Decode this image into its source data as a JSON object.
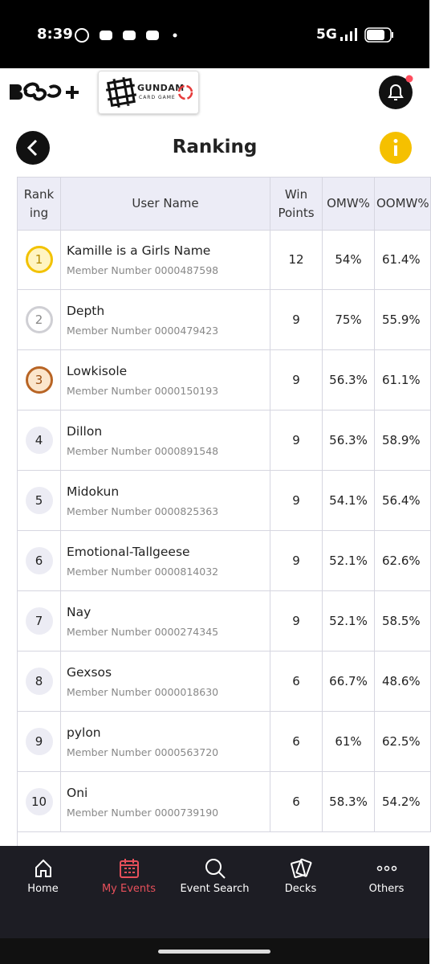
{
  "status_bar": {
    "time": "8:39",
    "network": "5G"
  },
  "header": {
    "logo_title": "GUNDAM",
    "logo_subtitle": "CARD GAME",
    "title": "Ranking"
  },
  "table": {
    "columns": [
      "Ranking",
      "User Name",
      "Win Points",
      "OMW%",
      "OOMW%"
    ],
    "rows": [
      {
        "rank": "1",
        "name": "Kamille is a Girls Name",
        "member": "Member Number 0000487598",
        "win_points": "12",
        "omw": "54%",
        "oomw": "61.4%"
      },
      {
        "rank": "2",
        "name": "Depth",
        "member": "Member Number 0000479423",
        "win_points": "9",
        "omw": "75%",
        "oomw": "55.9%"
      },
      {
        "rank": "3",
        "name": "Lowkisole",
        "member": "Member Number 0000150193",
        "win_points": "9",
        "omw": "56.3%",
        "oomw": "61.1%"
      },
      {
        "rank": "4",
        "name": "Dillon",
        "member": "Member Number 0000891548",
        "win_points": "9",
        "omw": "56.3%",
        "oomw": "58.9%"
      },
      {
        "rank": "5",
        "name": "Midokun",
        "member": "Member Number 0000825363",
        "win_points": "9",
        "omw": "54.1%",
        "oomw": "56.4%"
      },
      {
        "rank": "6",
        "name": "Emotional-Tallgeese",
        "member": "Member Number 0000814032",
        "win_points": "9",
        "omw": "52.1%",
        "oomw": "62.6%"
      },
      {
        "rank": "7",
        "name": "Nay",
        "member": "Member Number 0000274345",
        "win_points": "9",
        "omw": "52.1%",
        "oomw": "58.5%"
      },
      {
        "rank": "8",
        "name": "Gexsos",
        "member": "Member Number 0000018630",
        "win_points": "6",
        "omw": "66.7%",
        "oomw": "48.6%"
      },
      {
        "rank": "9",
        "name": "pylon",
        "member": "Member Number 0000563720",
        "win_points": "6",
        "omw": "61%",
        "oomw": "62.5%"
      },
      {
        "rank": "10",
        "name": "Oni",
        "member": "Member Number 0000739190",
        "win_points": "6",
        "omw": "58.3%",
        "oomw": "54.2%"
      }
    ]
  },
  "nav": [
    "Home",
    "My Events",
    "Event Search",
    "Decks",
    "Others"
  ]
}
